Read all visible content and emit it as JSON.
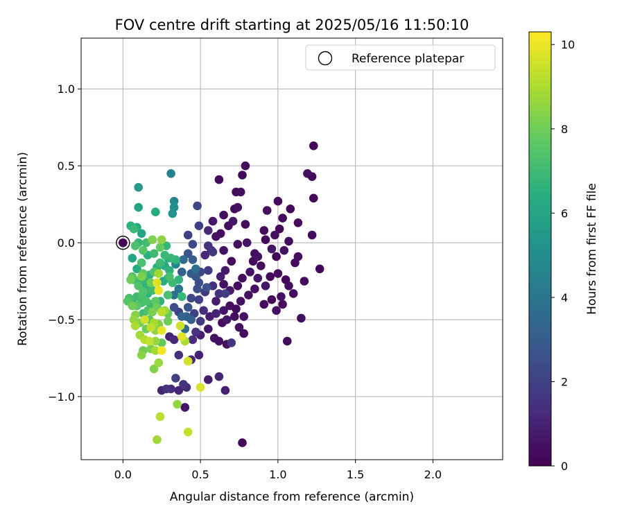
{
  "chart_data": {
    "type": "scatter",
    "title": "FOV centre drift starting at 2025/05/16 11:50:10",
    "xlabel": "Angular distance from reference (arcmin)",
    "ylabel": "Rotation from reference (arcmin)",
    "xlim": [
      -0.27,
      2.45
    ],
    "ylim": [
      -1.41,
      1.33
    ],
    "xticks": [
      0.0,
      0.5,
      1.0,
      1.5,
      2.0
    ],
    "xtick_labels": [
      "0.0",
      "0.5",
      "1.0",
      "1.5",
      "2.0"
    ],
    "yticks": [
      -1.0,
      -0.5,
      0.0,
      0.5,
      1.0
    ],
    "ytick_labels": [
      "−1.0",
      "−0.5",
      "0.0",
      "0.5",
      "1.0"
    ],
    "grid": true,
    "legend": {
      "position": "top-right",
      "label": "Reference platepar"
    },
    "reference_point": {
      "x": 0.0,
      "y": 0.0
    },
    "colormap": "viridis",
    "colorbar": {
      "label": "Hours from first FF file",
      "range": [
        0,
        10.3
      ],
      "ticks": [
        0,
        2,
        4,
        6,
        8,
        10
      ],
      "tick_labels": [
        "0",
        "2",
        "4",
        "6",
        "8",
        "10"
      ]
    },
    "points": [
      [
        1.23,
        0.63,
        0.2
      ],
      [
        1.22,
        0.43,
        0.3
      ],
      [
        1.19,
        0.45,
        0.4
      ],
      [
        1.23,
        0.29,
        0.2
      ],
      [
        1.22,
        0.05,
        0.3
      ],
      [
        1.27,
        -0.17,
        0.2
      ],
      [
        1.17,
        -0.25,
        0.3
      ],
      [
        1.15,
        -0.49,
        0.4
      ],
      [
        1.06,
        -0.64,
        0.3
      ],
      [
        1.13,
        -0.09,
        0.4
      ],
      [
        1.11,
        -0.13,
        0.2
      ],
      [
        1.13,
        0.13,
        0.3
      ],
      [
        1.08,
        0.22,
        0.2
      ],
      [
        1.03,
        0.16,
        0.3
      ],
      [
        1.0,
        0.27,
        0.2
      ],
      [
        0.93,
        0.21,
        0.4
      ],
      [
        1.07,
        0.01,
        0.3
      ],
      [
        1.04,
        -0.05,
        0.5
      ],
      [
        0.99,
        -0.09,
        0.2
      ],
      [
        0.96,
        -0.04,
        0.6
      ],
      [
        1.0,
        -0.2,
        0.3
      ],
      [
        1.05,
        -0.24,
        0.2
      ],
      [
        1.07,
        -0.28,
        0.4
      ],
      [
        1.1,
        -0.33,
        0.3
      ],
      [
        1.02,
        -0.35,
        0.5
      ],
      [
        0.96,
        -0.37,
        0.2
      ],
      [
        0.91,
        -0.4,
        0.3
      ],
      [
        0.99,
        -0.44,
        0.4
      ],
      [
        1.03,
        -0.4,
        0.3
      ],
      [
        0.92,
        -0.28,
        0.6
      ],
      [
        0.95,
        -0.22,
        0.2
      ],
      [
        0.89,
        -0.15,
        0.3
      ],
      [
        0.87,
        -0.09,
        0.5
      ],
      [
        0.92,
        0.02,
        0.2
      ],
      [
        0.91,
        0.08,
        0.3
      ],
      [
        0.98,
        0.05,
        0.4
      ],
      [
        1.01,
        0.09,
        0.2
      ],
      [
        0.79,
        0.5,
        0.3
      ],
      [
        0.77,
        0.44,
        0.2
      ],
      [
        0.76,
        0.33,
        0.4
      ],
      [
        0.73,
        0.33,
        0.3
      ],
      [
        0.72,
        0.22,
        0.2
      ],
      [
        0.74,
        0.23,
        0.5
      ],
      [
        0.79,
        0.12,
        0.3
      ],
      [
        0.71,
        0.14,
        0.6
      ],
      [
        0.68,
        0.11,
        0.4
      ],
      [
        0.63,
        0.06,
        0.3
      ],
      [
        0.6,
        0.04,
        0.5
      ],
      [
        0.62,
        0.41,
        0.3
      ],
      [
        0.65,
        0.18,
        0.4
      ],
      [
        0.58,
        0.14,
        0.6
      ],
      [
        0.55,
        0.08,
        1.2
      ],
      [
        0.57,
        -0.05,
        0.8
      ],
      [
        0.65,
        -0.05,
        0.5
      ],
      [
        0.7,
        -0.12,
        0.3
      ],
      [
        0.74,
        -0.01,
        0.4
      ],
      [
        0.8,
        0.0,
        0.6
      ],
      [
        0.85,
        -0.07,
        0.3
      ],
      [
        0.82,
        -0.19,
        0.5
      ],
      [
        0.77,
        -0.23,
        0.4
      ],
      [
        0.74,
        -0.28,
        0.3
      ],
      [
        0.69,
        -0.31,
        0.7
      ],
      [
        0.65,
        -0.27,
        0.5
      ],
      [
        0.62,
        -0.33,
        1.5
      ],
      [
        0.6,
        -0.38,
        0.8
      ],
      [
        0.65,
        -0.44,
        0.6
      ],
      [
        0.69,
        -0.41,
        0.4
      ],
      [
        0.73,
        -0.43,
        0.3
      ],
      [
        0.76,
        -0.38,
        0.5
      ],
      [
        0.72,
        -0.48,
        0.4
      ],
      [
        0.67,
        -0.5,
        0.6
      ],
      [
        0.64,
        -0.52,
        0.3
      ],
      [
        0.6,
        -0.46,
        1.0
      ],
      [
        0.56,
        -0.48,
        0.8
      ],
      [
        0.52,
        -0.44,
        1.3
      ],
      [
        0.5,
        -0.51,
        1.7
      ],
      [
        0.47,
        -0.58,
        1.5
      ],
      [
        0.5,
        -0.6,
        0.9
      ],
      [
        0.55,
        -0.56,
        0.6
      ],
      [
        0.59,
        -0.62,
        0.5
      ],
      [
        0.62,
        -0.64,
        0.4
      ],
      [
        0.67,
        -0.66,
        0.3
      ],
      [
        0.7,
        -0.65,
        1.6
      ],
      [
        0.75,
        -0.55,
        0.4
      ],
      [
        0.78,
        -0.59,
        0.3
      ],
      [
        0.78,
        -0.48,
        0.5
      ],
      [
        0.85,
        -0.3,
        0.4
      ],
      [
        0.87,
        -0.23,
        0.6
      ],
      [
        0.84,
        -0.12,
        0.3
      ],
      [
        0.81,
        -0.34,
        0.5
      ],
      [
        0.66,
        -0.18,
        0.7
      ],
      [
        0.63,
        -0.22,
        0.9
      ],
      [
        0.66,
        -0.33,
        1.8
      ],
      [
        0.58,
        -0.28,
        1.4
      ],
      [
        0.53,
        -0.32,
        1.6
      ],
      [
        0.55,
        -0.18,
        1.8
      ],
      [
        0.5,
        -0.19,
        2.2
      ],
      [
        0.47,
        -0.22,
        2.8
      ],
      [
        0.48,
        -0.3,
        2.5
      ],
      [
        0.44,
        -0.36,
        2.3
      ],
      [
        0.49,
        -0.37,
        2.0
      ],
      [
        0.42,
        -0.42,
        2.6
      ],
      [
        0.46,
        -0.46,
        1.9
      ],
      [
        0.44,
        -0.5,
        3.0
      ],
      [
        0.41,
        -0.48,
        3.2
      ],
      [
        0.4,
        -0.56,
        3.5
      ],
      [
        0.45,
        -0.63,
        1.3
      ],
      [
        0.49,
        -0.73,
        1.0
      ],
      [
        0.44,
        -0.76,
        1.2
      ],
      [
        0.36,
        -0.73,
        1.4
      ],
      [
        0.34,
        -0.88,
        2.0
      ],
      [
        0.39,
        -0.92,
        1.6
      ],
      [
        0.41,
        -0.94,
        1.4
      ],
      [
        0.36,
        -0.96,
        1.1
      ],
      [
        0.31,
        -0.95,
        1.3
      ],
      [
        0.28,
        -0.95,
        1.5
      ],
      [
        0.25,
        -0.96,
        1.0
      ],
      [
        0.55,
        -0.89,
        0.8
      ],
      [
        0.62,
        -0.87,
        1.1
      ],
      [
        0.66,
        -0.96,
        0.9
      ],
      [
        0.77,
        -1.3,
        0.2
      ],
      [
        0.4,
        -1.07,
        0.6
      ],
      [
        0.33,
        -0.63,
        1.2
      ],
      [
        0.3,
        -0.61,
        1.0
      ],
      [
        0.33,
        -0.42,
        2.4
      ],
      [
        0.36,
        -0.45,
        2.1
      ],
      [
        0.38,
        -0.48,
        3.3
      ],
      [
        0.33,
        -0.34,
        3.8
      ],
      [
        0.36,
        -0.3,
        4.0
      ],
      [
        0.38,
        -0.19,
        3.1
      ],
      [
        0.34,
        -0.14,
        4.6
      ],
      [
        0.39,
        -0.11,
        3.6
      ],
      [
        0.42,
        -0.07,
        2.7
      ],
      [
        0.45,
        -0.01,
        2.3
      ],
      [
        0.49,
        0.11,
        2.0
      ],
      [
        0.48,
        0.24,
        2.2
      ],
      [
        0.42,
        0.05,
        2.0
      ],
      [
        0.45,
        -0.11,
        3.0
      ],
      [
        0.47,
        -0.17,
        3.7
      ],
      [
        0.44,
        -0.2,
        2.9
      ],
      [
        0.49,
        -0.26,
        2.4
      ],
      [
        0.54,
        -0.29,
        2.6
      ],
      [
        0.53,
        -0.08,
        1.2
      ],
      [
        0.55,
        -0.02,
        1.5
      ],
      [
        0.58,
        -0.06,
        1.7
      ],
      [
        0.31,
        0.45,
        4.5
      ],
      [
        0.33,
        0.27,
        4.8
      ],
      [
        0.33,
        0.23,
        5.0
      ],
      [
        0.32,
        0.19,
        5.2
      ],
      [
        0.21,
        0.2,
        6.2
      ],
      [
        0.1,
        0.36,
        5.6
      ],
      [
        0.1,
        0.23,
        6.0
      ],
      [
        0.09,
        0.1,
        6.4
      ],
      [
        0.12,
        0.06,
        6.0
      ],
      [
        0.05,
        0.11,
        6.6
      ],
      [
        0.07,
        0.09,
        6.9
      ],
      [
        0.15,
        0.0,
        7.1
      ],
      [
        0.1,
        0.0,
        6.8
      ],
      [
        0.08,
        -0.02,
        7.3
      ],
      [
        0.13,
        -0.05,
        7.5
      ],
      [
        0.16,
        -0.08,
        6.5
      ],
      [
        0.2,
        -0.07,
        7.0
      ],
      [
        0.24,
        -0.03,
        7.8
      ],
      [
        0.28,
        -0.02,
        6.8
      ],
      [
        0.25,
        0.02,
        8.5
      ],
      [
        0.19,
        0.02,
        8.3
      ],
      [
        0.06,
        -0.1,
        6.1
      ],
      [
        0.12,
        -0.13,
        7.2
      ],
      [
        0.09,
        -0.17,
        6.3
      ],
      [
        0.06,
        -0.22,
        7.6
      ],
      [
        0.05,
        -0.24,
        8.0
      ],
      [
        0.07,
        -0.24,
        7.1
      ],
      [
        0.1,
        -0.25,
        6.7
      ],
      [
        0.13,
        -0.2,
        7.7
      ],
      [
        0.14,
        -0.24,
        6.9
      ],
      [
        0.17,
        -0.21,
        6.5
      ],
      [
        0.2,
        -0.19,
        7.4
      ],
      [
        0.22,
        -0.16,
        6.6
      ],
      [
        0.23,
        -0.2,
        8.8
      ],
      [
        0.24,
        -0.13,
        7.0
      ],
      [
        0.27,
        -0.15,
        6.3
      ],
      [
        0.29,
        -0.1,
        6.4
      ],
      [
        0.31,
        -0.1,
        6.8
      ],
      [
        0.34,
        -0.11,
        6.7
      ],
      [
        0.3,
        -0.18,
        6.6
      ],
      [
        0.29,
        -0.23,
        6.4
      ],
      [
        0.26,
        -0.25,
        6.2
      ],
      [
        0.22,
        -0.26,
        9.8
      ],
      [
        0.18,
        -0.26,
        7.9
      ],
      [
        0.16,
        -0.3,
        6.8
      ],
      [
        0.13,
        -0.32,
        7.4
      ],
      [
        0.19,
        -0.31,
        7.0
      ],
      [
        0.23,
        -0.31,
        10.0
      ],
      [
        0.16,
        -0.33,
        6.6
      ],
      [
        0.12,
        -0.35,
        7.2
      ],
      [
        0.09,
        -0.35,
        7.0
      ],
      [
        0.06,
        -0.38,
        6.8
      ],
      [
        0.03,
        -0.38,
        7.5
      ],
      [
        0.06,
        -0.41,
        8.0
      ],
      [
        0.09,
        -0.41,
        7.6
      ],
      [
        0.12,
        -0.39,
        7.1
      ],
      [
        0.15,
        -0.38,
        7.3
      ],
      [
        0.18,
        -0.4,
        6.9
      ],
      [
        0.21,
        -0.38,
        7.7
      ],
      [
        0.24,
        -0.38,
        6.6
      ],
      [
        0.22,
        -0.42,
        7.9
      ],
      [
        0.19,
        -0.45,
        8.2
      ],
      [
        0.16,
        -0.44,
        7.4
      ],
      [
        0.13,
        -0.46,
        7.0
      ],
      [
        0.08,
        -0.47,
        8.4
      ],
      [
        0.07,
        -0.5,
        8.6
      ],
      [
        0.08,
        -0.54,
        9.0
      ],
      [
        0.11,
        -0.52,
        8.1
      ],
      [
        0.14,
        -0.5,
        9.6
      ],
      [
        0.17,
        -0.5,
        7.6
      ],
      [
        0.2,
        -0.52,
        8.9
      ],
      [
        0.23,
        -0.53,
        8.3
      ],
      [
        0.27,
        -0.44,
        8.7
      ],
      [
        0.25,
        -0.45,
        9.2
      ],
      [
        0.29,
        -0.46,
        7.8
      ],
      [
        0.29,
        -0.51,
        8.0
      ],
      [
        0.25,
        -0.57,
        9.9
      ],
      [
        0.21,
        -0.57,
        8.5
      ],
      [
        0.18,
        -0.55,
        9.3
      ],
      [
        0.15,
        -0.56,
        7.9
      ],
      [
        0.11,
        -0.6,
        8.8
      ],
      [
        0.14,
        -0.63,
        9.1
      ],
      [
        0.17,
        -0.64,
        9.4
      ],
      [
        0.21,
        -0.64,
        8.6
      ],
      [
        0.25,
        -0.65,
        7.8
      ],
      [
        0.18,
        -0.69,
        8.2
      ],
      [
        0.21,
        -0.7,
        8.9
      ],
      [
        0.25,
        -0.7,
        10.1
      ],
      [
        0.13,
        -0.7,
        8.0
      ],
      [
        0.12,
        -0.73,
        8.4
      ],
      [
        0.37,
        -0.54,
        9.5
      ],
      [
        0.38,
        -0.61,
        9.8
      ],
      [
        0.4,
        -0.64,
        9.0
      ],
      [
        0.42,
        -0.77,
        9.6
      ],
      [
        0.23,
        -0.78,
        8.7
      ],
      [
        0.2,
        -0.82,
        8.3
      ],
      [
        0.38,
        -0.35,
        6.8
      ],
      [
        0.5,
        -0.94,
        9.7
      ],
      [
        0.35,
        -1.05,
        8.6
      ],
      [
        0.24,
        -1.13,
        9.2
      ],
      [
        0.42,
        -1.23,
        9.4
      ],
      [
        0.22,
        -1.28,
        8.8
      ],
      [
        0.3,
        -0.22,
        7.2
      ],
      [
        0.32,
        -0.26,
        7.0
      ],
      [
        0.36,
        -0.24,
        6.7
      ],
      [
        0.27,
        -0.08,
        6.9
      ],
      [
        0.12,
        -0.22,
        8.2
      ],
      [
        0.1,
        -0.28,
        7.4
      ],
      [
        0.14,
        -0.28,
        6.5
      ],
      [
        0.04,
        -0.36,
        7.2
      ],
      [
        0.29,
        -0.34,
        7.3
      ]
    ]
  }
}
